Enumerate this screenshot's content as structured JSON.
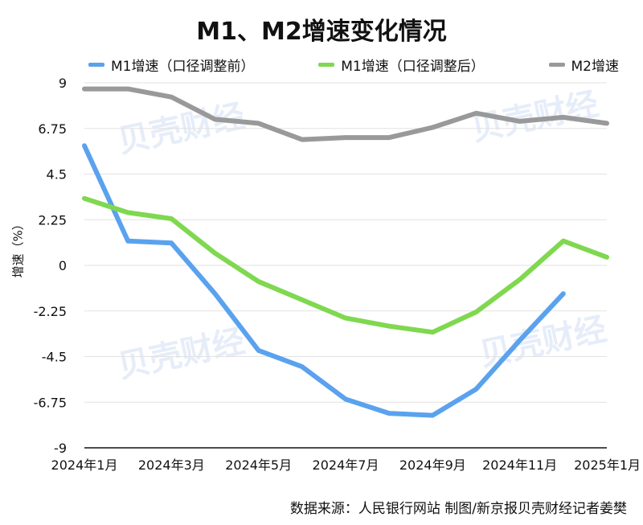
{
  "chart_data": {
    "type": "line",
    "title": "M1、M2增速变化情况",
    "ylabel": "增速（%）",
    "xlabel": "",
    "ylim": [
      -9,
      9
    ],
    "yticks": [
      "9",
      "6.75",
      "4.5",
      "2.25",
      "0",
      "-2.25",
      "-4.5",
      "-6.75",
      "-9"
    ],
    "ytick_values": [
      9,
      6.75,
      4.5,
      2.25,
      0,
      -2.25,
      -4.5,
      -6.75,
      -9
    ],
    "x": [
      "2024-01",
      "2024-02",
      "2024-03",
      "2024-04",
      "2024-05",
      "2024-06",
      "2024-07",
      "2024-08",
      "2024-09",
      "2024-10",
      "2024-11",
      "2024-12",
      "2025-01"
    ],
    "xticks": [
      "2024年1月",
      "2024年3月",
      "2024年5月",
      "2024年7月",
      "2024年9月",
      "2024年11月",
      "2025年1月"
    ],
    "xtick_index": [
      0,
      2,
      4,
      6,
      8,
      10,
      12
    ],
    "grid": true,
    "legend_position": "top",
    "series": [
      {
        "name": "M1增速（口径调整前）",
        "color": "#5aa2ee",
        "values": [
          5.9,
          1.2,
          1.1,
          -1.4,
          -4.2,
          -5.0,
          -6.6,
          -7.3,
          -7.4,
          -6.1,
          -3.7,
          -1.4,
          null
        ]
      },
      {
        "name": "M1增速（口径调整后）",
        "color": "#7fd84f",
        "values": [
          3.3,
          2.6,
          2.3,
          0.6,
          -0.8,
          -1.7,
          -2.6,
          -3.0,
          -3.3,
          -2.3,
          -0.7,
          1.2,
          0.4
        ]
      },
      {
        "name": "M2增速",
        "color": "#999999",
        "values": [
          8.7,
          8.7,
          8.3,
          7.2,
          7.0,
          6.2,
          6.3,
          6.3,
          6.8,
          7.5,
          7.1,
          7.3,
          7.0
        ]
      }
    ]
  },
  "watermark_text": "贝壳财经",
  "source_text": "数据来源：人民银行网站 制图/新京报贝壳财经记者姜樊"
}
